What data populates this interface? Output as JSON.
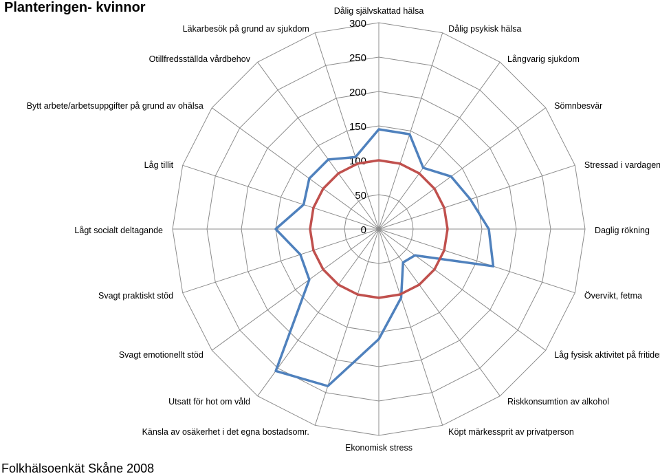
{
  "title": "Planteringen- kvinnor",
  "footer": "Folkhälsoenkät Skåne 2008",
  "chart_data": {
    "type": "radar",
    "title": "Planteringen- kvinnor",
    "rlim": [
      0,
      300
    ],
    "ticks": [
      0,
      50,
      100,
      150,
      200,
      250,
      300
    ],
    "grid": true,
    "categories": [
      "Dålig självskattad hälsa",
      "Dålig psykisk hälsa",
      "Långvarig sjukdom",
      "Sömnbesvär",
      "Stressad i vardagen",
      "Daglig rökning",
      "Övervikt, fetma",
      "Låg fysisk aktivitet på fritiden",
      "Riskkonsumtion av alkohol",
      "Köpt märkessprit av privatperson",
      "Ekonomisk stress",
      "Känsla av osäkerhet i det egna bostadsomr.",
      "Utsatt för hot om våld",
      "Svagt emotionellt stöd",
      "Svagt praktiskt stöd",
      "Lågt socialt deltagande",
      "Låg tillit",
      "Bytt arbete/arbetsuppgifter på grund av ohälsa",
      "Otillfredsställda vårdbehov",
      "Läkarbesök på grund av sjukdom"
    ],
    "series": [
      {
        "color": "#4f81bd",
        "values": [
          145,
          145,
          110,
          130,
          140,
          160,
          175,
          65,
          60,
          105,
          160,
          240,
          255,
          125,
          120,
          150,
          115,
          125,
          125,
          110
        ]
      },
      {
        "color": "#c0504d",
        "values": [
          100,
          100,
          100,
          100,
          100,
          100,
          100,
          100,
          100,
          100,
          100,
          100,
          100,
          100,
          100,
          100,
          100,
          100,
          100,
          100
        ]
      }
    ]
  }
}
